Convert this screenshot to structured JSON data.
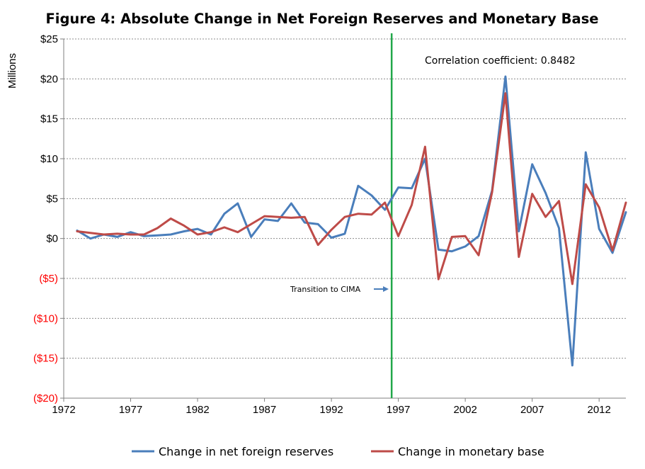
{
  "chart_data": {
    "type": "line",
    "title": "Figure 4: Absolute Change in Net Foreign Reserves and Monetary Base",
    "ylabel": "Millions",
    "xlabel": "",
    "xlim": [
      1972,
      2014
    ],
    "ylim": [
      -20,
      25
    ],
    "x_ticks": [
      1972,
      1977,
      1982,
      1987,
      1992,
      1997,
      2002,
      2007,
      2012
    ],
    "y_ticks": [
      {
        "value": 25,
        "label": "$25",
        "negative": false
      },
      {
        "value": 20,
        "label": "$20",
        "negative": false
      },
      {
        "value": 15,
        "label": "$15",
        "negative": false
      },
      {
        "value": 10,
        "label": "$10",
        "negative": false
      },
      {
        "value": 5,
        "label": "$5",
        "negative": false
      },
      {
        "value": 0,
        "label": "$0",
        "negative": false
      },
      {
        "value": -5,
        "label": "($5)",
        "negative": true
      },
      {
        "value": -10,
        "label": "($10)",
        "negative": true
      },
      {
        "value": -15,
        "label": "($15)",
        "negative": true
      },
      {
        "value": -20,
        "label": "($20)",
        "negative": true
      }
    ],
    "grid": true,
    "legend_position": "bottom",
    "x": [
      1973,
      1974,
      1975,
      1976,
      1977,
      1978,
      1979,
      1980,
      1981,
      1982,
      1983,
      1984,
      1985,
      1986,
      1987,
      1988,
      1989,
      1990,
      1991,
      1992,
      1993,
      1994,
      1995,
      1996,
      1997,
      1998,
      1999,
      2000,
      2001,
      2002,
      2003,
      2004,
      2005,
      2006,
      2007,
      2008,
      2009,
      2010,
      2011,
      2012,
      2013,
      2014
    ],
    "series": [
      {
        "name": "Change in net foreign reserves",
        "color": "#4a7ebb",
        "values": [
          1.0,
          0.0,
          0.5,
          0.2,
          0.8,
          0.3,
          0.4,
          0.5,
          0.9,
          1.2,
          0.5,
          3.1,
          4.4,
          0.2,
          2.4,
          2.2,
          4.4,
          2.0,
          1.8,
          0.1,
          0.6,
          6.6,
          5.4,
          3.6,
          6.4,
          6.3,
          10.0,
          -1.4,
          -1.6,
          -1.0,
          0.3,
          6.0,
          20.3,
          0.9,
          9.3,
          5.7,
          1.3,
          -15.9,
          10.8,
          1.2,
          -1.8,
          3.3
        ]
      },
      {
        "name": "Change in monetary base",
        "color": "#be4b48",
        "values": [
          0.9,
          0.7,
          0.5,
          0.6,
          0.5,
          0.5,
          1.3,
          2.5,
          1.6,
          0.5,
          0.8,
          1.4,
          0.8,
          1.8,
          2.8,
          2.7,
          2.6,
          2.7,
          -0.8,
          1.1,
          2.7,
          3.1,
          3.0,
          4.5,
          0.3,
          4.2,
          11.5,
          -5.1,
          0.2,
          0.3,
          -2.1,
          5.8,
          18.2,
          -2.3,
          5.6,
          2.7,
          4.7,
          -5.7,
          6.8,
          3.9,
          -1.5,
          4.5
        ]
      }
    ],
    "annotations": {
      "correlation": "Correlation coefficient: 0.8482",
      "transition": "Transition to CIMA",
      "transition_year": 1996.5
    },
    "marker_line_color": "#22a84a"
  }
}
